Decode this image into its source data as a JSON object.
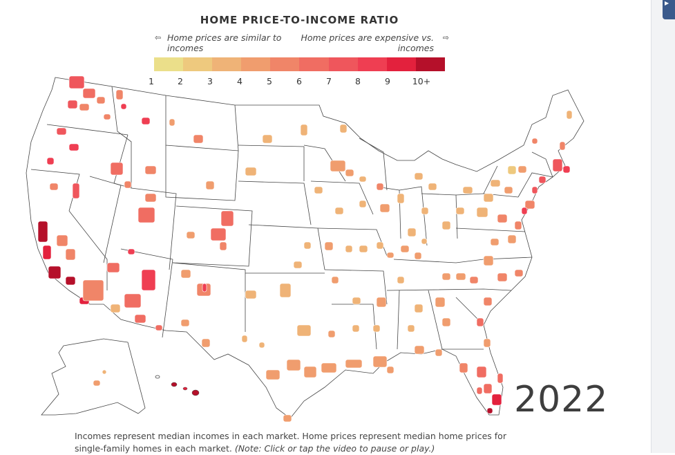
{
  "header": {
    "title": "HOME PRICE-TO-INCOME RATIO"
  },
  "legend": {
    "left_label": "Home prices are similar to incomes",
    "right_label": "Home prices are expensive vs. incomes",
    "left_arrow": "⇦",
    "right_arrow": "⇨",
    "colors": [
      "#ebdf8a",
      "#eec97e",
      "#efb377",
      "#f09d6e",
      "#f08568",
      "#f06d62",
      "#ef565c",
      "#ef3e52",
      "#e3213d",
      "#b5102a"
    ],
    "ticks": [
      "1",
      "2",
      "3",
      "4",
      "5",
      "6",
      "7",
      "8",
      "9",
      "10+"
    ]
  },
  "map": {
    "year": "2022",
    "region_colors": {
      "c1": "#ebdf8a",
      "c2": "#eec97e",
      "c3": "#efb377",
      "c4": "#f09d6e",
      "c5": "#f08568",
      "c6": "#f06d62",
      "c7": "#ef565c",
      "c8": "#ef3e52",
      "c9": "#e3213d",
      "c10": "#b5102a"
    }
  },
  "caption": {
    "text": "Incomes represent median incomes in each market. Home prices represent median home prices for single-family homes in each market.",
    "note": "(Note: Click or tap the video to pause or play.)"
  },
  "sidebar": {
    "button_icon": "play-icon"
  }
}
